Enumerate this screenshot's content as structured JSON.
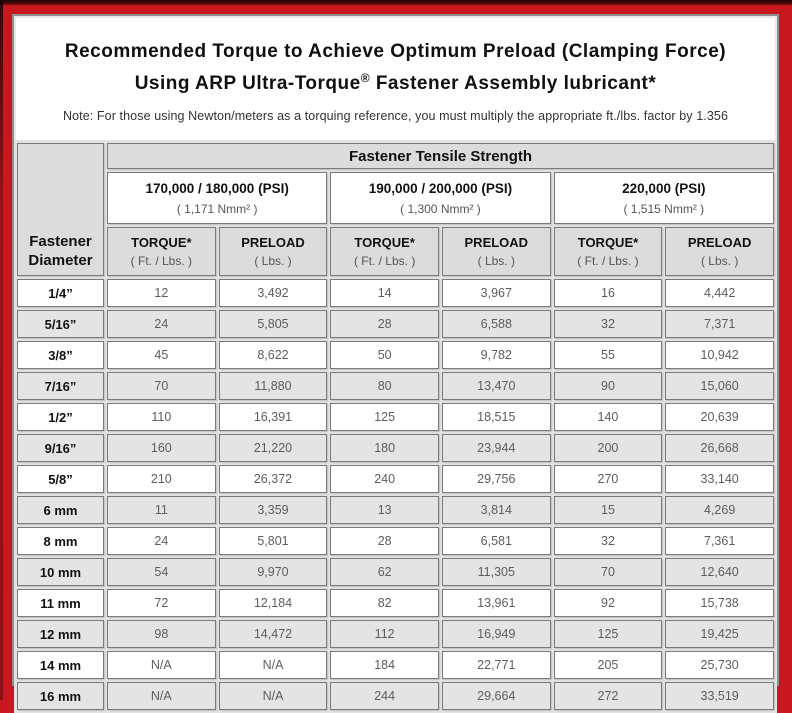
{
  "colors": {
    "frame_red": "#C8171E",
    "header_gray": "#DCDCDC",
    "alt_row_gray": "#E4E4E4"
  },
  "title": {
    "line1": "Recommended Torque to Achieve Optimum Preload (Clamping Force)",
    "line2_pre": "Using ARP Ultra-Torque",
    "line2_reg": "®",
    "line2_post": " Fastener Assembly lubricant*",
    "note": "Note: For those using Newton/meters as a torquing reference, you must multiply the appropriate ft./lbs. factor by 1.356"
  },
  "table": {
    "corner_header": "Fastener\nDiameter",
    "tensile_header": "Fastener Tensile Strength",
    "groups": [
      {
        "psi": "170,000 / 180,000 (PSI)",
        "nmm": "( 1,171 Nmm² )"
      },
      {
        "psi": "190,000 / 200,000 (PSI)",
        "nmm": "( 1,300 Nmm² )"
      },
      {
        "psi": "220,000 (PSI)",
        "nmm": "( 1,515 Nmm² )"
      }
    ],
    "col_headers": [
      {
        "label": "TORQUE*",
        "unit": "( Ft. / Lbs. )"
      },
      {
        "label": "PRELOAD",
        "unit": "( Lbs. )"
      }
    ],
    "rows": [
      {
        "diameter": "1/4”",
        "values": [
          "12",
          "3,492",
          "14",
          "3,967",
          "16",
          "4,442"
        ]
      },
      {
        "diameter": "5/16”",
        "values": [
          "24",
          "5,805",
          "28",
          "6,588",
          "32",
          "7,371"
        ]
      },
      {
        "diameter": "3/8”",
        "values": [
          "45",
          "8,622",
          "50",
          "9,782",
          "55",
          "10,942"
        ]
      },
      {
        "diameter": "7/16”",
        "values": [
          "70",
          "11,880",
          "80",
          "13,470",
          "90",
          "15,060"
        ]
      },
      {
        "diameter": "1/2”",
        "values": [
          "110",
          "16,391",
          "125",
          "18,515",
          "140",
          "20,639"
        ]
      },
      {
        "diameter": "9/16”",
        "values": [
          "160",
          "21,220",
          "180",
          "23,944",
          "200",
          "26,668"
        ]
      },
      {
        "diameter": "5/8”",
        "values": [
          "210",
          "26,372",
          "240",
          "29,756",
          "270",
          "33,140"
        ]
      },
      {
        "diameter": "6 mm",
        "values": [
          "11",
          "3,359",
          "13",
          "3,814",
          "15",
          "4,269"
        ]
      },
      {
        "diameter": "8 mm",
        "values": [
          "24",
          "5,801",
          "28",
          "6,581",
          "32",
          "7,361"
        ]
      },
      {
        "diameter": "10 mm",
        "values": [
          "54",
          "9,970",
          "62",
          "11,305",
          "70",
          "12,640"
        ]
      },
      {
        "diameter": "11 mm",
        "values": [
          "72",
          "12,184",
          "82",
          "13,961",
          "92",
          "15,738"
        ]
      },
      {
        "diameter": "12 mm",
        "values": [
          "98",
          "14,472",
          "112",
          "16,949",
          "125",
          "19,425"
        ]
      },
      {
        "diameter": "14 mm",
        "values": [
          "N/A",
          "N/A",
          "184",
          "22,771",
          "205",
          "25,730"
        ]
      },
      {
        "diameter": "16 mm",
        "values": [
          "N/A",
          "N/A",
          "244",
          "29,664",
          "272",
          "33,519"
        ]
      }
    ]
  }
}
